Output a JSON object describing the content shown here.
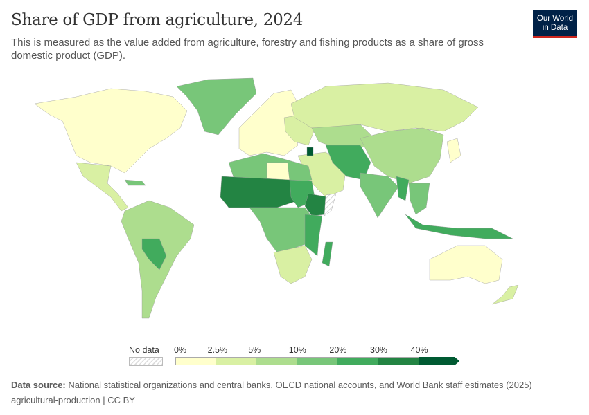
{
  "header": {
    "title": "Share of GDP from agriculture, 2024",
    "subtitle": "This is measured as the value added from agriculture, forestry and fishing products as a share of gross domestic product (GDP)."
  },
  "logo": {
    "line1": "Our World",
    "line2": "in Data"
  },
  "legend": {
    "no_data_label": "No data",
    "ticks": [
      "0%",
      "2.5%",
      "5%",
      "10%",
      "20%",
      "30%",
      "40%"
    ],
    "bins": [
      {
        "range": "0–2.5%",
        "color": "#ffffcc"
      },
      {
        "range": "2.5–5%",
        "color": "#d9f0a3"
      },
      {
        "range": "5–10%",
        "color": "#addd8e"
      },
      {
        "range": "10–20%",
        "color": "#78c679"
      },
      {
        "range": "20–30%",
        "color": "#41ab5d"
      },
      {
        "range": "30–40%",
        "color": "#238443"
      },
      {
        "range": ">40%",
        "color": "#005a32"
      }
    ]
  },
  "footer": {
    "source_label": "Data source:",
    "source_text": "National statistical organizations and central banks, OECD national accounts, and World Bank staff estimates (2025)",
    "slug": "agricultural-production | CC BY"
  }
}
